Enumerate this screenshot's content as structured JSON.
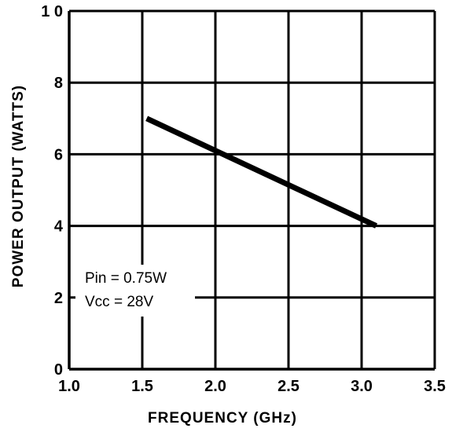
{
  "chart_data": {
    "type": "line",
    "title": "",
    "xlabel": "FREQUENCY  (GHz)",
    "ylabel": "POWER OUTPUT  (WATTS)",
    "xlim": [
      1.0,
      3.5
    ],
    "ylim": [
      0,
      10
    ],
    "x_ticks": [
      "1.0",
      "1.5",
      "2.0",
      "2.5",
      "3.0",
      "3.5"
    ],
    "y_ticks": [
      "0",
      "2",
      "4",
      "6",
      "8",
      "1 0"
    ],
    "grid": true,
    "series": [
      {
        "x": [
          1.53,
          3.1
        ],
        "y": [
          7.0,
          4.0
        ]
      }
    ],
    "annotations": [
      "Pin = 0.75W",
      "Vcc = 28V"
    ]
  }
}
